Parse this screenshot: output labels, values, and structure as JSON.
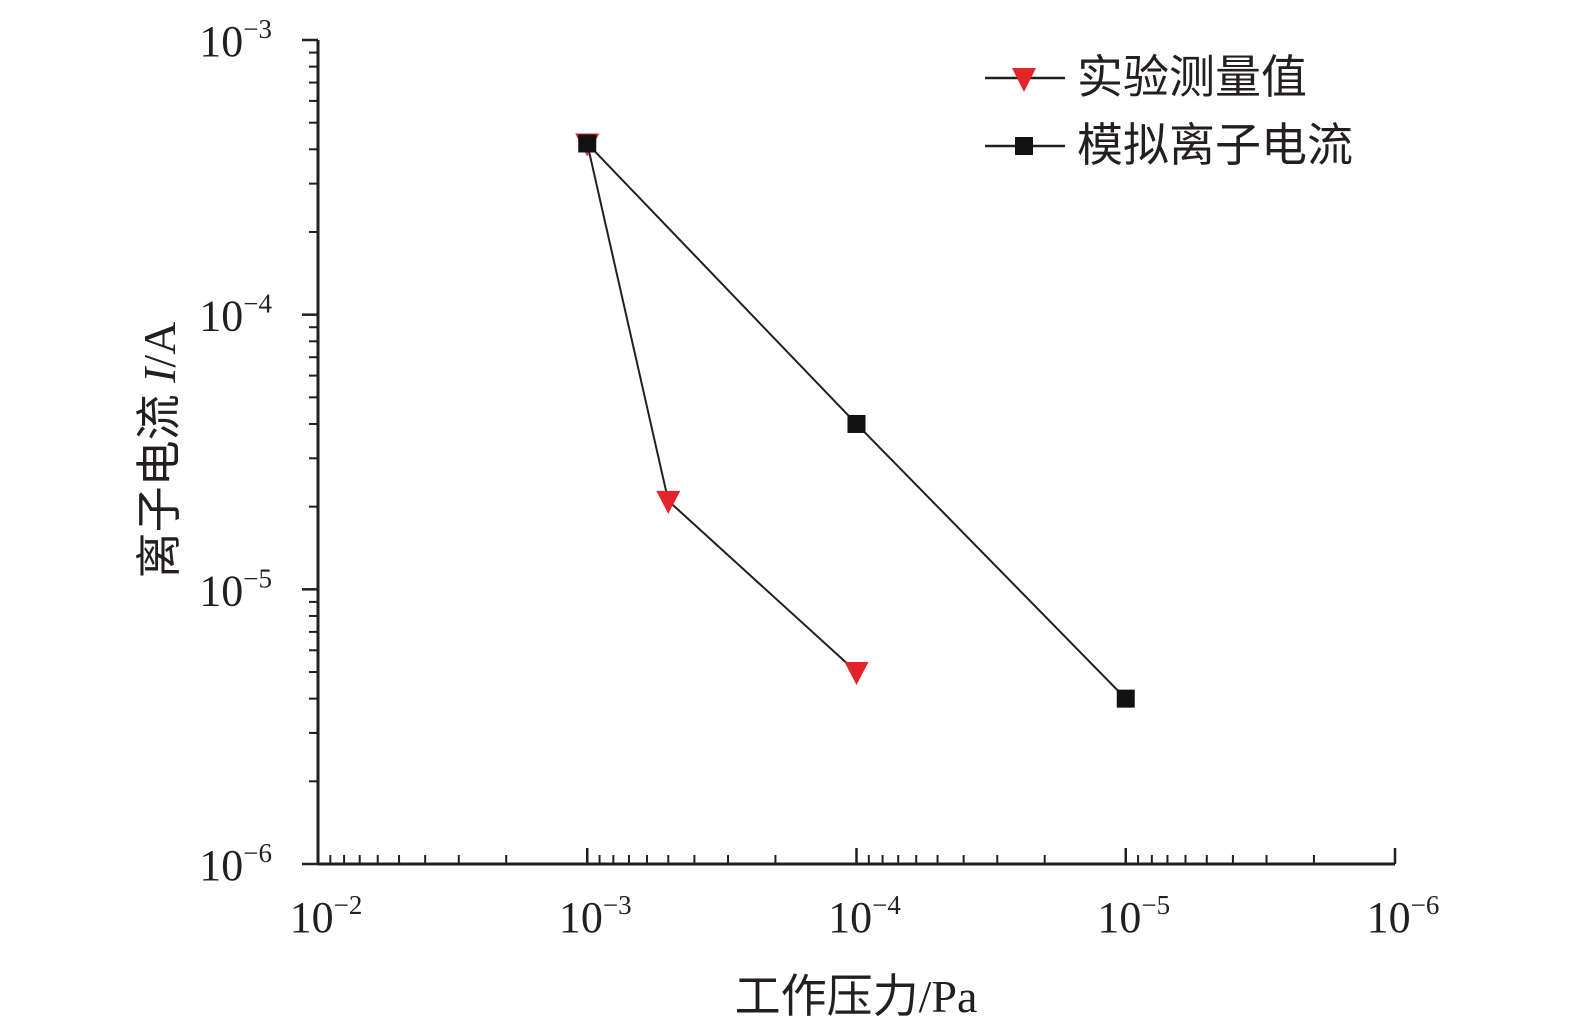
{
  "chart_data": {
    "type": "line",
    "xlabel": "工作压力/Pa",
    "ylabel_prefix": "离子电流 ",
    "ylabel_var": "I",
    "ylabel_unit": "/A",
    "xscale": "log",
    "yscale": "log",
    "x_reversed": true,
    "xlim": [
      0.01,
      1e-06
    ],
    "ylim": [
      1e-06,
      0.001
    ],
    "x_ticks": [
      {
        "value": 0.01,
        "base": "10",
        "exp": "−2"
      },
      {
        "value": 0.001,
        "base": "10",
        "exp": "−3"
      },
      {
        "value": 0.0001,
        "base": "10",
        "exp": "−4"
      },
      {
        "value": 1e-05,
        "base": "10",
        "exp": "−5"
      },
      {
        "value": 1e-06,
        "base": "10",
        "exp": "−6"
      }
    ],
    "y_ticks": [
      {
        "value": 1e-06,
        "base": "10",
        "exp": "−6"
      },
      {
        "value": 1e-05,
        "base": "10",
        "exp": "−5"
      },
      {
        "value": 0.0001,
        "base": "10",
        "exp": "−4"
      },
      {
        "value": 0.001,
        "base": "10",
        "exp": "−3"
      }
    ],
    "grid": false,
    "legend_position": "top-right",
    "series": [
      {
        "name": "实验测量值",
        "marker": "triangle-down",
        "color": "#e3242b",
        "x": [
          0.001,
          0.0005,
          0.0001
        ],
        "y": [
          0.00042,
          2.1e-05,
          5e-06
        ]
      },
      {
        "name": "模拟离子电流",
        "marker": "square",
        "color": "#111111",
        "x": [
          0.001,
          0.0001,
          1e-05
        ],
        "y": [
          0.00042,
          4e-05,
          4e-06
        ]
      }
    ]
  }
}
